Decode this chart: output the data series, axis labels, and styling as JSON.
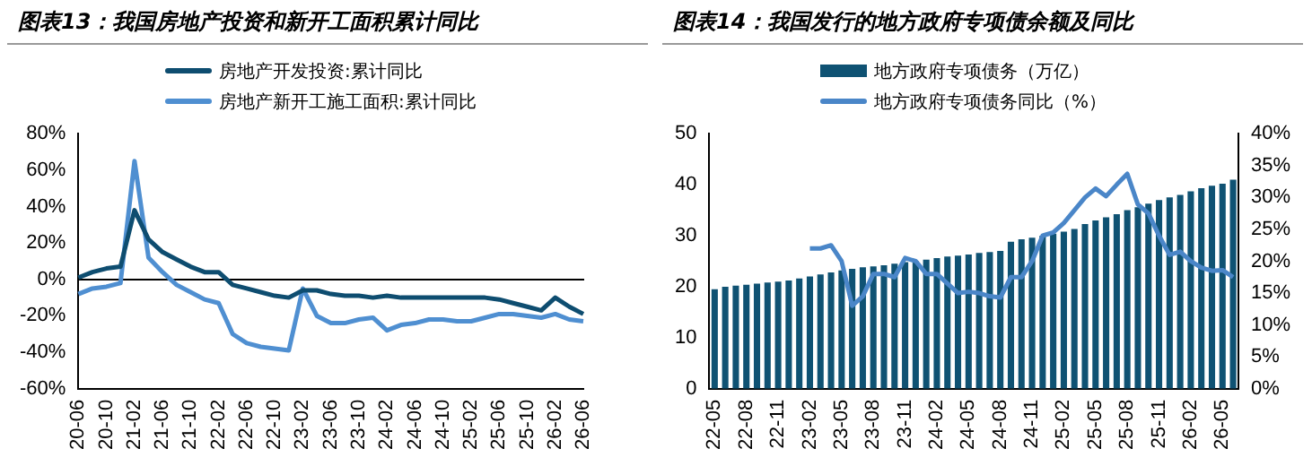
{
  "chart_data": [
    {
      "type": "line",
      "title": "图表13：我国房地产投资和新开工面积累计同比",
      "legend": "top",
      "categories": [
        "20-06",
        null,
        "20-10",
        null,
        "21-02",
        null,
        "21-06",
        null,
        "21-10",
        null,
        "22-02",
        null,
        "22-06",
        null,
        "22-10",
        null,
        "23-02",
        null,
        "23-06",
        null,
        "23-10",
        null,
        "24-02",
        null,
        "24-06",
        null,
        "24-10",
        null,
        "25-02",
        null,
        "25-06",
        null,
        "25-10",
        null,
        "26-02",
        null,
        "26-06"
      ],
      "series": [
        {
          "name": "房地产开发投资:累计同比",
          "color": "#0e4d70",
          "values": [
            1,
            4,
            6,
            7,
            38,
            22,
            15,
            11,
            7,
            4,
            4,
            -3,
            -5,
            -7,
            -9,
            -10,
            -6,
            -6,
            -8,
            -9,
            -9,
            -10,
            -9,
            -10,
            -10,
            -10,
            -10,
            -10,
            -10,
            -10,
            -11,
            -13,
            -15,
            -17,
            -10,
            -15,
            -19
          ]
        },
        {
          "name": "房地产新开工施工面积:累计同比",
          "color": "#4f8fd1",
          "values": [
            -8,
            -5,
            -4,
            -2,
            65,
            12,
            4,
            -3,
            -7,
            -11,
            -13,
            -30,
            -35,
            -37,
            -38,
            -39,
            -5,
            -20,
            -24,
            -24,
            -22,
            -21,
            -28,
            -25,
            -24,
            -22,
            -22,
            -23,
            -23,
            -21,
            -19,
            -19,
            -20,
            -21,
            -19,
            -22,
            -23
          ]
        }
      ],
      "ylim": [
        -60,
        80
      ],
      "yticks": [
        {
          "value": -60,
          "label": "-60%"
        },
        {
          "value": -40,
          "label": "-40%"
        },
        {
          "value": -20,
          "label": "-20%"
        },
        {
          "value": 0,
          "label": "0%"
        },
        {
          "value": 20,
          "label": "20%"
        },
        {
          "value": 40,
          "label": "40%"
        },
        {
          "value": 60,
          "label": "60%"
        },
        {
          "value": 80,
          "label": "80%"
        }
      ]
    },
    {
      "type": "bar",
      "title": "图表14：我国发行的地方政府专项债余额及同比",
      "legend": "top",
      "categories": [
        "22-05",
        null,
        null,
        "22-08",
        null,
        null,
        "22-11",
        null,
        null,
        "23-02",
        null,
        null,
        "23-05",
        null,
        null,
        "23-08",
        null,
        null,
        "23-11",
        null,
        null,
        "24-02",
        null,
        null,
        "24-05",
        null,
        null,
        "24-08",
        null,
        null,
        "24-11",
        null,
        null,
        "25-02",
        null,
        null,
        "25-05",
        null,
        null,
        "25-08",
        null,
        null,
        "25-11",
        null,
        null,
        "26-02",
        null,
        null,
        "26-05",
        null
      ],
      "series": [
        {
          "name": "地方政府专项债务（万亿）",
          "type": "bar",
          "color": "#0f5273",
          "values": [
            19.5,
            20,
            20.2,
            20.4,
            20.6,
            20.8,
            21,
            21.2,
            21.6,
            22,
            22.4,
            22.8,
            23.2,
            23.5,
            23.8,
            24,
            24.2,
            24.5,
            24.8,
            25,
            25.3,
            25.6,
            25.9,
            26.1,
            26.3,
            26.6,
            26.8,
            27,
            28.8,
            29.3,
            29.6,
            30,
            30.4,
            30.8,
            31.3,
            32.3,
            33,
            33.6,
            34.2,
            35,
            35.6,
            36.3,
            37,
            37.5,
            38,
            38.7,
            39.3,
            39.8,
            40.2,
            41
          ]
        },
        {
          "name": "地方政府专项债务同比（%）",
          "type": "line",
          "axis": "y2",
          "color": "#4a86c8",
          "values": [
            null,
            null,
            null,
            null,
            null,
            null,
            null,
            null,
            null,
            22,
            22,
            22.5,
            20,
            13,
            14.5,
            18,
            18,
            17.5,
            20.5,
            20,
            18,
            18,
            16.5,
            15,
            15.2,
            15,
            14.5,
            14.3,
            17.5,
            17.5,
            20,
            24,
            24.5,
            26,
            28,
            30,
            31.4,
            30.2,
            32,
            33.7,
            28.9,
            27.5,
            24,
            21,
            21.5,
            20,
            19,
            18.5,
            18.6,
            17.5
          ]
        }
      ],
      "ylim": [
        0,
        50
      ],
      "yticks": [
        0,
        10,
        20,
        30,
        40,
        50
      ],
      "y2lim": [
        0,
        40
      ],
      "y2ticks": [
        {
          "value": 0,
          "label": "0%"
        },
        {
          "value": 5,
          "label": "5%"
        },
        {
          "value": 10,
          "label": "10%"
        },
        {
          "value": 15,
          "label": "15%"
        },
        {
          "value": 20,
          "label": "20%"
        },
        {
          "value": 25,
          "label": "25%"
        },
        {
          "value": 30,
          "label": "30%"
        },
        {
          "value": 35,
          "label": "35%"
        },
        {
          "value": 40,
          "label": "40%"
        }
      ]
    }
  ]
}
